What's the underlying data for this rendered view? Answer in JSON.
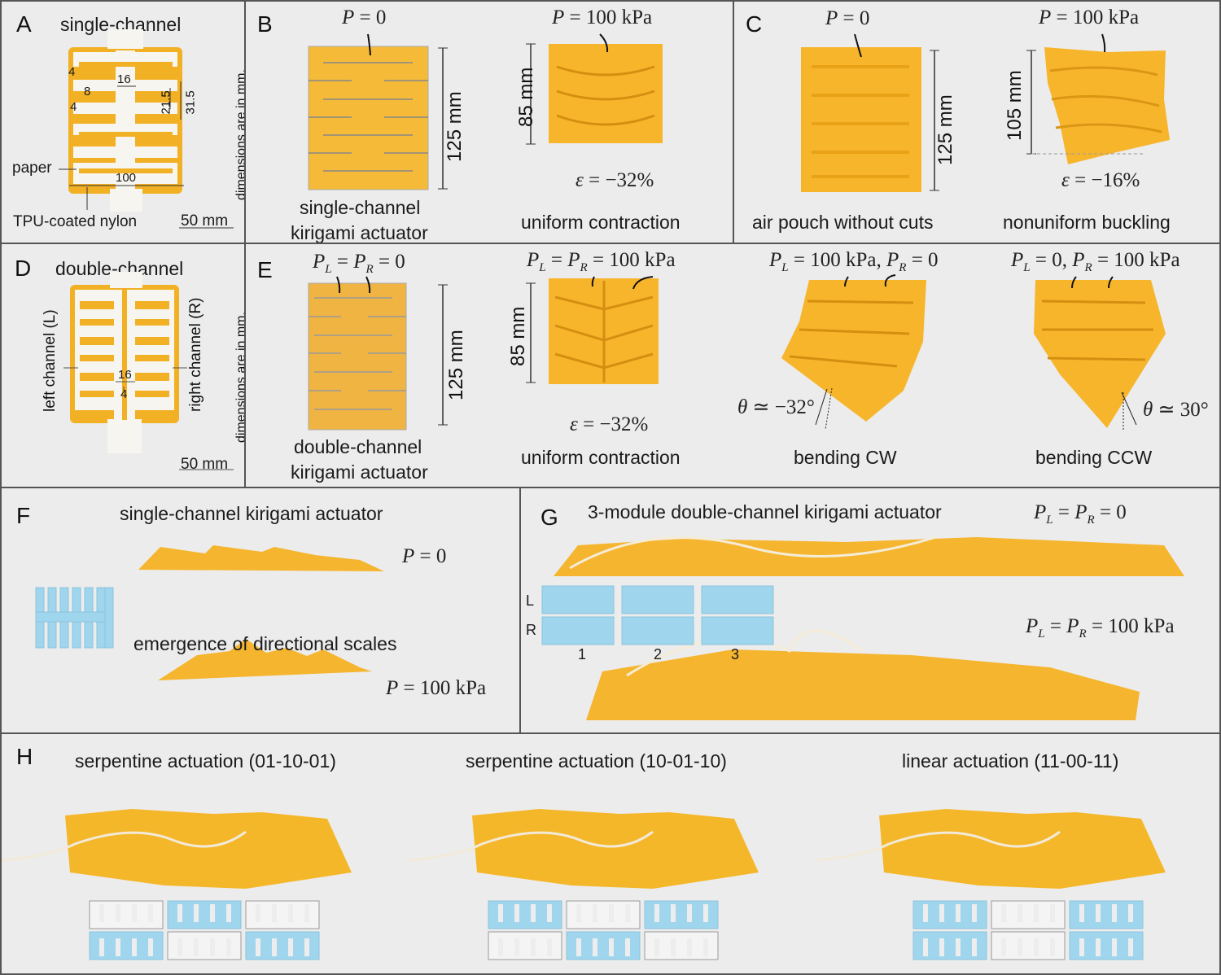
{
  "figure": {
    "panels": {
      "A": {
        "label": "A",
        "title": "single-channel",
        "dims": {
          "d4a": "4",
          "d16": "16",
          "d8": "8",
          "d4b": "4",
          "d21_5": "21.5",
          "d31_5": "31.5",
          "d100": "100"
        },
        "callout_paper": "paper",
        "callout_tpu": "TPU-coated nylon",
        "dim_note": "dimensions are in mm.",
        "scale_bar": "50 mm"
      },
      "B": {
        "label": "B",
        "left_pressure": {
          "var": "P",
          "rest": " = 0"
        },
        "left_height": "125 mm",
        "left_caption_1": "single-channel",
        "left_caption_2": "kirigami actuator",
        "right_pressure": {
          "var": "P",
          "rest": " = 100 kPa"
        },
        "right_height": "85 mm",
        "right_strain": {
          "var": "ε",
          "rest": " = −32%"
        },
        "right_caption": "uniform contraction"
      },
      "C": {
        "label": "C",
        "left_pressure": {
          "var": "P",
          "rest": " = 0"
        },
        "left_height": "125 mm",
        "left_caption": "air pouch without cuts",
        "right_pressure": {
          "var": "P",
          "rest": " = 100 kPa"
        },
        "right_height": "105 mm",
        "right_strain": {
          "var": "ε",
          "rest": " = −16%"
        },
        "right_caption": "nonuniform buckling"
      },
      "D": {
        "label": "D",
        "title": "double-channel",
        "left_channel": "left channel (L)",
        "right_channel": "right channel (R)",
        "dims": {
          "d16": "16",
          "d4": "4"
        },
        "dim_note": "dimensions are in mm.",
        "scale_bar": "50 mm"
      },
      "E": {
        "label": "E",
        "p1": {
          "text": "P_L = P_R = 0",
          "a": "P",
          "asub": "L",
          "b": " = ",
          "c": "P",
          "csub": "R",
          "d": " = 0"
        },
        "p1_height": "125 mm",
        "p1_caption_1": "double-channel",
        "p1_caption_2": "kirigami actuator",
        "p2": {
          "a": "P",
          "asub": "L",
          "b": " = ",
          "c": "P",
          "csub": "R",
          "d": " = 100 kPa"
        },
        "p2_height": "85 mm",
        "p2_strain": {
          "var": "ε",
          "rest": " = −32%"
        },
        "p2_caption": "uniform contraction",
        "p3": {
          "a": "P",
          "asub": "L",
          "b": " = 100 kPa, ",
          "c": "P",
          "csub": "R",
          "d": " = 0"
        },
        "p3_angle": {
          "var": "θ",
          "rest": " ≃ −32°"
        },
        "p3_caption": "bending CW",
        "p4": {
          "a": "P",
          "asub": "L",
          "b": " = 0, ",
          "c": "P",
          "csub": "R",
          "d": " = 100 kPa"
        },
        "p4_angle": {
          "var": "θ",
          "rest": " ≃ 30°"
        },
        "p4_caption": "bending CCW"
      },
      "F": {
        "label": "F",
        "title": "single-channel kirigami actuator",
        "top_pressure": {
          "var": "P",
          "rest": " = 0"
        },
        "subtitle": "emergence of directional scales",
        "bottom_pressure": {
          "var": "P",
          "rest": " = 100 kPa"
        }
      },
      "G": {
        "label": "G",
        "title": "3-module double-channel kirigami actuator",
        "top_pressure": {
          "a": "P",
          "asub": "L",
          "b": " = ",
          "c": "P",
          "csub": "R",
          "d": " = 0"
        },
        "bottom_pressure": {
          "a": "P",
          "asub": "L",
          "b": " = ",
          "c": "P",
          "csub": "R",
          "d": " = 100 kPa"
        },
        "row_labels": [
          "L",
          "R"
        ],
        "module_labels": [
          "1",
          "2",
          "3"
        ]
      },
      "H": {
        "label": "H",
        "cases": [
          {
            "title": "serpentine actuation (01-10-01)",
            "pattern": [
              "01",
              "10",
              "01"
            ]
          },
          {
            "title": "serpentine actuation (10-01-10)",
            "pattern": [
              "10",
              "01",
              "10"
            ]
          },
          {
            "title": "linear actuation (11-00-11)",
            "pattern": [
              "11",
              "00",
              "11"
            ]
          }
        ]
      }
    },
    "colors": {
      "actuator": "#f5b72a",
      "actuator_dark": "#e09a14",
      "paper": "#f7f5ef",
      "schematic_active": "#9fd6ee",
      "schematic_inactive": "#f4f4f4",
      "schematic_outline": "#9a9a9a",
      "panel_bg": "#ececec",
      "border": "#555555"
    }
  }
}
